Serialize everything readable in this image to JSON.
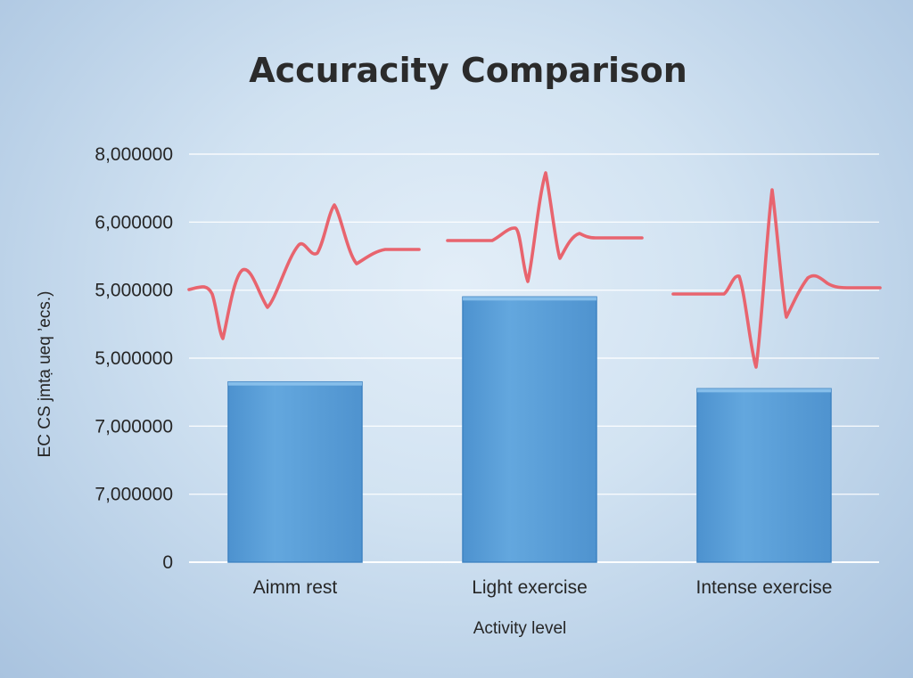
{
  "chart_data": {
    "type": "bar",
    "title": "Accuracity Comparison",
    "xlabel": "Activity level",
    "ylabel": "EC CS jmtạ ueq ’ecs.)",
    "y_tick_labels": [
      "0",
      "7,000000",
      "7,000000",
      "5,000000",
      "5,000000",
      "6,000000",
      "8,000000"
    ],
    "ylim": [
      0,
      6
    ],
    "grid": true,
    "categories": [
      "Aimm rest",
      "Light exercise",
      "Intense exercise"
    ],
    "values": [
      2.65,
      3.9,
      2.55
    ],
    "colors": {
      "bar": "#5a9fd8",
      "ecg_line": "#e8646e",
      "grid": "#ffffff"
    }
  }
}
